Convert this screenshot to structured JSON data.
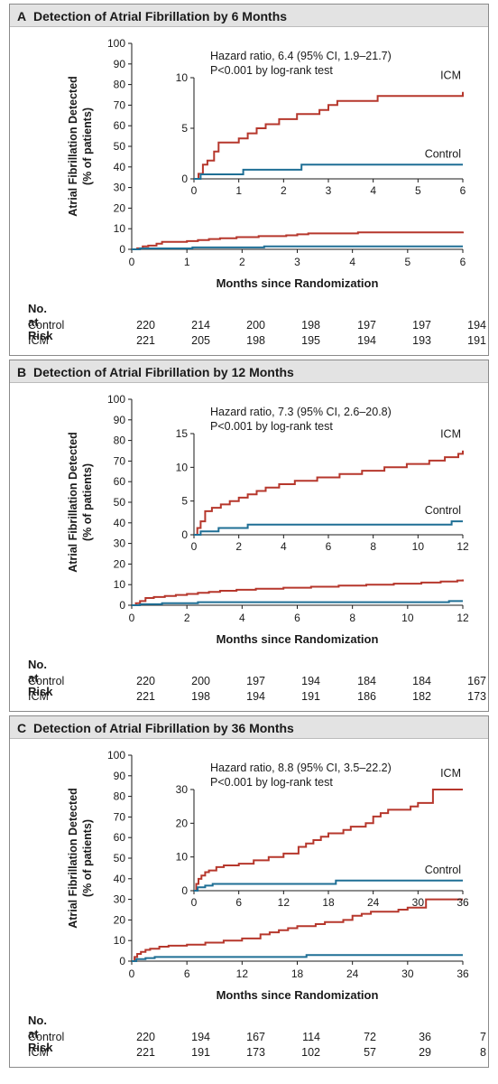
{
  "colors": {
    "icm": "#b6372c",
    "control": "#1f6f95",
    "axis": "#1a1a1a",
    "header_bg": "#e3e3e3"
  },
  "risk_label": "No. at Risk",
  "chart_data": [
    {
      "type": "line",
      "letter": "A",
      "title": "Detection of Atrial Fibrillation by 6 Months",
      "xlabel": "Months since Randomization",
      "ylabel_line1": "Atrial Fibrillation Detected",
      "ylabel_line2": "(% of patients)",
      "xlim": [
        0,
        6
      ],
      "ylim": [
        0,
        100
      ],
      "xticks": [
        0,
        1,
        2,
        3,
        4,
        5,
        6
      ],
      "yticks": [
        0,
        10,
        20,
        30,
        40,
        50,
        60,
        70,
        80,
        90,
        100
      ],
      "inset": {
        "ylim": [
          0,
          10
        ],
        "yticks": [
          0,
          5,
          10
        ],
        "hazard_text": "Hazard ratio, 6.4 (95% CI, 1.9–21.7)",
        "p_text": "P<0.001 by log-rank test"
      },
      "series": [
        {
          "name": "ICM",
          "key": "icm",
          "x": [
            0,
            0.1,
            0.2,
            0.3,
            0.45,
            0.55,
            0.65,
            1.0,
            1.2,
            1.4,
            1.6,
            1.9,
            2.3,
            2.8,
            3.0,
            3.2,
            4.1,
            6.0,
            6.0
          ],
          "y": [
            0,
            0.5,
            1.4,
            1.8,
            2.7,
            3.6,
            3.6,
            4.0,
            4.5,
            5.0,
            5.4,
            5.9,
            6.4,
            6.8,
            7.3,
            7.7,
            8.2,
            8.2,
            8.6
          ]
        },
        {
          "name": "Control",
          "key": "control",
          "x": [
            0,
            0.15,
            1.1,
            2.4,
            6.0
          ],
          "y": [
            0,
            0.45,
            0.9,
            1.4,
            1.4
          ]
        }
      ],
      "risk_columns": [
        0,
        1,
        2,
        3,
        4,
        5,
        6
      ],
      "risk_rows": [
        {
          "label": "Control",
          "values": [
            "220",
            "214",
            "200",
            "198",
            "197",
            "197",
            "194"
          ]
        },
        {
          "label": "ICM",
          "values": [
            "221",
            "205",
            "198",
            "195",
            "194",
            "193",
            "191"
          ]
        }
      ]
    },
    {
      "type": "line",
      "letter": "B",
      "title": "Detection of Atrial Fibrillation by 12 Months",
      "xlabel": "Months since Randomization",
      "ylabel_line1": "Atrial Fibrillation Detected",
      "ylabel_line2": "(% of patients)",
      "xlim": [
        0,
        12
      ],
      "ylim": [
        0,
        100
      ],
      "xticks": [
        0,
        2,
        4,
        6,
        8,
        10,
        12
      ],
      "yticks": [
        0,
        10,
        20,
        30,
        40,
        50,
        60,
        70,
        80,
        90,
        100
      ],
      "inset": {
        "ylim": [
          0,
          15
        ],
        "yticks": [
          0,
          5,
          10,
          15
        ],
        "hazard_text": "Hazard ratio, 7.3 (95% CI, 2.6–20.8)",
        "p_text": "P<0.001 by log-rank test"
      },
      "series": [
        {
          "name": "ICM",
          "key": "icm",
          "x": [
            0,
            0.15,
            0.3,
            0.5,
            0.8,
            1.2,
            1.6,
            2.0,
            2.4,
            2.8,
            3.2,
            3.8,
            4.5,
            5.5,
            6.5,
            7.5,
            8.5,
            9.5,
            10.5,
            11.2,
            11.8,
            12.0,
            12.0
          ],
          "y": [
            0,
            1.0,
            2.0,
            3.5,
            4.0,
            4.5,
            5.0,
            5.5,
            6.0,
            6.5,
            7.0,
            7.5,
            8.0,
            8.5,
            9.0,
            9.5,
            10.0,
            10.5,
            11.0,
            11.5,
            12.0,
            12.0,
            12.5
          ]
        },
        {
          "name": "Control",
          "key": "control",
          "x": [
            0,
            0.3,
            1.1,
            2.4,
            11.5,
            12.0
          ],
          "y": [
            0,
            0.5,
            1.0,
            1.5,
            2.0,
            2.0
          ]
        }
      ],
      "risk_columns": [
        0,
        2,
        4,
        6,
        8,
        10,
        12
      ],
      "risk_rows": [
        {
          "label": "Control",
          "values": [
            "220",
            "200",
            "197",
            "194",
            "184",
            "184",
            "167"
          ]
        },
        {
          "label": "ICM",
          "values": [
            "221",
            "198",
            "194",
            "191",
            "186",
            "182",
            "173"
          ]
        }
      ]
    },
    {
      "type": "line",
      "letter": "C",
      "title": "Detection of Atrial Fibrillation by 36 Months",
      "xlabel": "Months since Randomization",
      "ylabel_line1": "Atrial Fibrillation Detected",
      "ylabel_line2": "(% of patients)",
      "xlim": [
        0,
        36
      ],
      "ylim": [
        0,
        100
      ],
      "xticks": [
        0,
        6,
        12,
        18,
        24,
        30,
        36
      ],
      "yticks": [
        0,
        10,
        20,
        30,
        40,
        50,
        60,
        70,
        80,
        90,
        100
      ],
      "inset": {
        "ylim": [
          0,
          30
        ],
        "yticks": [
          0,
          10,
          20,
          30
        ],
        "hazard_text": "Hazard ratio, 8.8 (95% CI, 3.5–22.2)",
        "p_text": "P<0.001 by log-rank test"
      },
      "series": [
        {
          "name": "ICM",
          "key": "icm",
          "x": [
            0,
            0.3,
            0.6,
            1.0,
            1.5,
            2.0,
            3.0,
            4.0,
            6.0,
            8.0,
            10.0,
            12.0,
            14.0,
            15.0,
            16.0,
            17.0,
            18.0,
            20.0,
            21.0,
            22.0,
            23.0,
            24.0,
            25.0,
            26.0,
            28.0,
            29.0,
            30.0,
            32.0,
            32.0,
            36.0
          ],
          "y": [
            0,
            2.0,
            3.5,
            4.5,
            5.5,
            6.0,
            7.0,
            7.5,
            8.0,
            9.0,
            10.0,
            11.0,
            13.0,
            14.0,
            15.0,
            16.0,
            17.0,
            18.0,
            19.0,
            19.0,
            20.0,
            22.0,
            23.0,
            24.0,
            24.0,
            25.0,
            26.0,
            26.0,
            30.0,
            30.0
          ]
        },
        {
          "name": "Control",
          "key": "control",
          "x": [
            0,
            0.5,
            1.5,
            2.5,
            19.0,
            36.0
          ],
          "y": [
            0,
            1.0,
            1.5,
            2.0,
            3.0,
            3.0
          ]
        }
      ],
      "risk_columns": [
        0,
        6,
        12,
        18,
        24,
        30,
        36
      ],
      "risk_rows": [
        {
          "label": "Control",
          "values": [
            "220",
            "194",
            "167",
            "114",
            "72",
            "36",
            "7"
          ]
        },
        {
          "label": "ICM",
          "values": [
            "221",
            "191",
            "173",
            "102",
            "57",
            "29",
            "8"
          ]
        }
      ]
    }
  ]
}
